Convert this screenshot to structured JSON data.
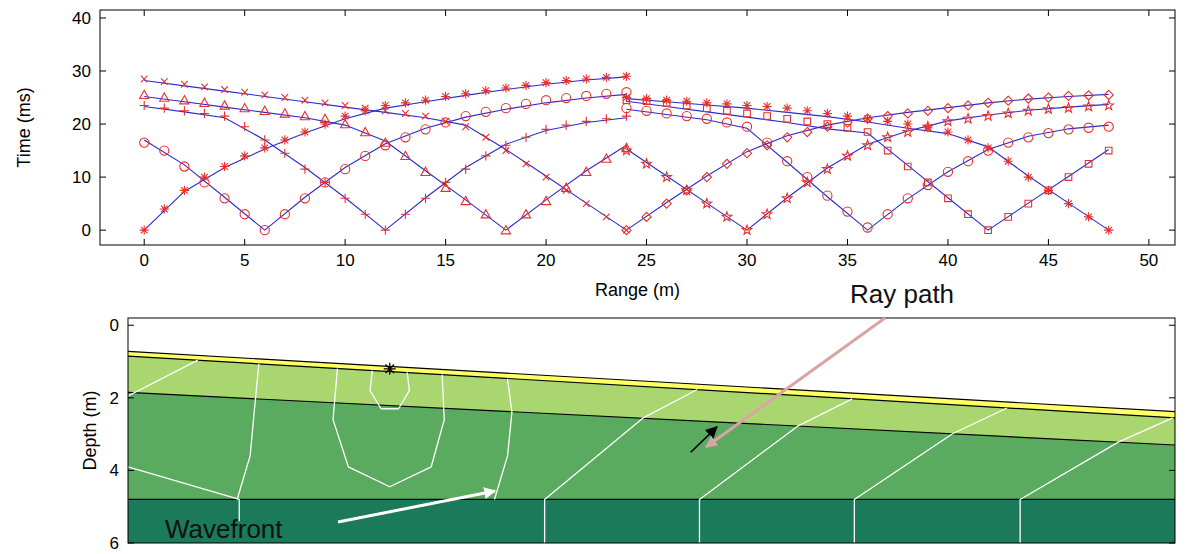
{
  "chart_data": [
    {
      "type": "scatter",
      "xlabel": "Range (m)",
      "ylabel": "Time (ms)",
      "xlim": [
        -2.2,
        51.3
      ],
      "xticks": [
        0,
        5,
        10,
        15,
        20,
        25,
        30,
        35,
        40,
        45,
        50
      ],
      "ylim": [
        -2.8,
        41.5
      ],
      "yticks": [
        0,
        10,
        20,
        30,
        40
      ],
      "grid": false,
      "series": [
        {
          "type": "scatter",
          "marker": "asterisk",
          "color": "#e8302a",
          "x": [
            0,
            1,
            2,
            3,
            4,
            5,
            6,
            7,
            8,
            9,
            10,
            11,
            12,
            13,
            14,
            15,
            16,
            17,
            18,
            19,
            20,
            21,
            22,
            23,
            24
          ],
          "values": [
            0,
            4,
            7.5,
            10,
            12,
            14,
            15.5,
            17,
            18.5,
            20,
            21.5,
            22.5,
            23.5,
            24,
            24.5,
            25.2,
            25.7,
            26.3,
            26.8,
            27.3,
            27.8,
            28.2,
            28.5,
            28.8,
            29
          ]
        },
        {
          "type": "scatter",
          "marker": "circle",
          "color": "#e8302a",
          "x": [
            0,
            1,
            2,
            3,
            4,
            5,
            6,
            7,
            8,
            9,
            10,
            11,
            12,
            13,
            14,
            15,
            16,
            17,
            18,
            19,
            20,
            21,
            22,
            23,
            24
          ],
          "values": [
            16.5,
            15,
            12,
            9,
            6,
            3,
            0,
            3,
            6,
            9,
            11.5,
            14,
            16,
            17.5,
            19,
            20.3,
            21.5,
            22.3,
            23,
            23.8,
            24.5,
            24.9,
            25.3,
            25.7,
            26
          ]
        },
        {
          "type": "scatter",
          "marker": "plus",
          "color": "#e8302a",
          "x": [
            0,
            1,
            2,
            3,
            4,
            5,
            6,
            7,
            8,
            9,
            10,
            11,
            12,
            13,
            14,
            15,
            16,
            17,
            18,
            19,
            20,
            21,
            22,
            23,
            24
          ],
          "values": [
            23.5,
            23,
            22.5,
            22,
            21.5,
            19.5,
            17,
            14.5,
            11.5,
            9,
            6,
            3,
            0,
            3,
            6,
            9,
            11.5,
            14,
            16,
            17.5,
            19,
            19.8,
            20.5,
            21,
            21.5
          ]
        },
        {
          "type": "scatter",
          "marker": "triangle",
          "color": "#e8302a",
          "x": [
            0,
            1,
            2,
            3,
            4,
            5,
            6,
            7,
            8,
            9,
            10,
            11,
            12,
            13,
            14,
            15,
            16,
            17,
            18,
            19,
            20,
            21,
            22,
            23,
            24
          ],
          "values": [
            25.5,
            25,
            24.5,
            24,
            23.5,
            23,
            22.5,
            22,
            21.5,
            21,
            20,
            18.5,
            16.5,
            14,
            11,
            8,
            5.5,
            3,
            0,
            3,
            5.5,
            8,
            11,
            13.5,
            15.5
          ]
        },
        {
          "type": "scatter",
          "marker": "x",
          "color": "#e8302a",
          "x": [
            0,
            1,
            2,
            3,
            4,
            5,
            6,
            7,
            8,
            9,
            10,
            11,
            12,
            13,
            14,
            15,
            16,
            17,
            18,
            19,
            20,
            21,
            22,
            23,
            24
          ],
          "values": [
            28.5,
            28,
            27.5,
            27,
            26.5,
            26,
            25.5,
            25,
            24.5,
            24,
            23.5,
            23,
            22.5,
            22,
            21.5,
            20.5,
            19.5,
            17.5,
            15,
            12.5,
            10,
            7.5,
            5,
            2.5,
            0
          ]
        },
        {
          "type": "scatter",
          "marker": "diamond",
          "color": "#e8302a",
          "x": [
            24,
            25,
            26,
            27,
            28,
            29,
            30,
            31,
            32,
            33,
            34,
            35,
            36,
            37,
            38,
            39,
            40,
            41,
            42,
            43,
            44,
            45,
            46,
            47,
            48
          ],
          "values": [
            0,
            2.5,
            5,
            7.5,
            10,
            12.5,
            14.5,
            16,
            17.5,
            18.5,
            19.5,
            20.3,
            21,
            21.5,
            22,
            22.5,
            23,
            23.5,
            24,
            24.4,
            24.8,
            25,
            25.3,
            25.4,
            25.5
          ]
        },
        {
          "type": "scatter",
          "marker": "star",
          "color": "#e8302a",
          "x": [
            24,
            25,
            26,
            27,
            28,
            29,
            30,
            31,
            32,
            33,
            34,
            35,
            36,
            37,
            38,
            39,
            40,
            41,
            42,
            43,
            44,
            45,
            46,
            47,
            48
          ],
          "values": [
            15,
            12.5,
            10,
            7.5,
            5,
            2.5,
            0,
            3,
            6,
            9,
            11.5,
            14,
            16,
            17.5,
            18.5,
            19.5,
            20.5,
            21,
            21.5,
            22,
            22.5,
            22.8,
            23,
            23.3,
            23.5
          ]
        },
        {
          "type": "scatter",
          "marker": "circle",
          "color": "#e8302a",
          "x": [
            24,
            25,
            26,
            27,
            28,
            29,
            30,
            31,
            32,
            33,
            34,
            35,
            36,
            37,
            38,
            39,
            40,
            41,
            42,
            43,
            44,
            45,
            46,
            47,
            48
          ],
          "values": [
            23,
            22.5,
            22,
            21.5,
            21,
            20.3,
            19.5,
            16.5,
            13,
            10,
            6.5,
            3.5,
            0.5,
            3,
            6,
            8.5,
            11,
            13,
            15,
            16.5,
            17.5,
            18.3,
            19,
            19.3,
            19.5
          ]
        },
        {
          "type": "scatter",
          "marker": "square",
          "color": "#e8302a",
          "x": [
            24,
            25,
            26,
            27,
            28,
            29,
            30,
            31,
            32,
            33,
            34,
            35,
            36,
            37,
            38,
            39,
            40,
            41,
            42,
            43,
            44,
            45,
            46,
            47,
            48
          ],
          "values": [
            24.5,
            24.3,
            24,
            23.5,
            23,
            22.5,
            22,
            21.5,
            21,
            20.5,
            20,
            19.3,
            18.5,
            15,
            12,
            9,
            6,
            3,
            0,
            2.5,
            5,
            7.5,
            10,
            12.5,
            15
          ]
        },
        {
          "type": "scatter",
          "marker": "asterisk",
          "color": "#e8302a",
          "x": [
            24,
            25,
            26,
            27,
            28,
            29,
            30,
            31,
            32,
            33,
            34,
            35,
            36,
            37,
            38,
            39,
            40,
            41,
            42,
            43,
            44,
            45,
            46,
            47,
            48
          ],
          "values": [
            25,
            24.8,
            24.5,
            24.3,
            24,
            23.8,
            23.5,
            23.3,
            23,
            22.5,
            22,
            21.5,
            21,
            20.5,
            20,
            19.3,
            18.5,
            17,
            15.5,
            13,
            10,
            7.5,
            5,
            2.5,
            0
          ]
        },
        {
          "type": "line",
          "line_style": "solid",
          "color": "#2b2bd0",
          "x": [
            0,
            2,
            4,
            6,
            8,
            10,
            12,
            14,
            16,
            18,
            20,
            22,
            24
          ],
          "values": [
            0,
            7.3,
            11.8,
            15.3,
            18.3,
            21,
            23,
            24.2,
            25.4,
            26.5,
            27.5,
            28.3,
            28.9
          ]
        },
        {
          "type": "line",
          "line_style": "solid",
          "color": "#2b2bd0",
          "x": [
            0,
            2,
            4,
            6,
            8,
            10,
            12,
            14,
            16,
            18,
            20,
            22,
            24
          ],
          "values": [
            17,
            12.3,
            6.2,
            0,
            6.2,
            11.8,
            16.3,
            19.2,
            21.3,
            22.8,
            24,
            24.9,
            25.6
          ]
        },
        {
          "type": "line",
          "line_style": "solid",
          "color": "#2b2bd0",
          "x": [
            0,
            2,
            4,
            6,
            8,
            10,
            12,
            14,
            16,
            18,
            20,
            22,
            24
          ],
          "values": [
            23.3,
            22.3,
            21.2,
            17,
            11.8,
            6.1,
            0,
            6.1,
            11.8,
            16.2,
            18.8,
            20.3,
            21.2
          ]
        },
        {
          "type": "line",
          "line_style": "solid",
          "color": "#2b2bd0",
          "x": [
            0,
            2,
            4,
            6,
            8,
            10,
            12,
            14,
            16,
            18,
            20,
            22,
            24
          ],
          "values": [
            25.2,
            24.2,
            23.2,
            22.2,
            21.2,
            19.8,
            16.8,
            11.2,
            5.7,
            0,
            5.7,
            11.2,
            16
          ]
        },
        {
          "type": "line",
          "line_style": "solid",
          "color": "#2b2bd0",
          "x": [
            0,
            2,
            4,
            6,
            8,
            10,
            12,
            14,
            16,
            18,
            20,
            22,
            24
          ],
          "values": [
            28.2,
            27.2,
            26.2,
            25.2,
            24.2,
            23.2,
            22.2,
            21.2,
            19.8,
            15.2,
            10.2,
            5.1,
            0
          ]
        },
        {
          "type": "line",
          "line_style": "solid",
          "color": "#2b2bd0",
          "x": [
            24,
            26,
            28,
            30,
            32,
            34,
            36,
            38,
            40,
            42,
            44,
            46,
            48
          ],
          "values": [
            0,
            5.2,
            10.2,
            14.8,
            17.8,
            19.8,
            21.2,
            22.2,
            23.1,
            24,
            24.7,
            25.2,
            25.6
          ]
        },
        {
          "type": "line",
          "line_style": "solid",
          "color": "#2b2bd0",
          "x": [
            24,
            26,
            28,
            30,
            32,
            34,
            36,
            38,
            40,
            42,
            44,
            46,
            48
          ],
          "values": [
            15.3,
            10.2,
            5.1,
            0,
            6.1,
            11.7,
            16.2,
            18.7,
            20.6,
            21.7,
            22.6,
            23.2,
            23.7
          ]
        },
        {
          "type": "line",
          "line_style": "solid",
          "color": "#2b2bd0",
          "x": [
            24,
            26,
            28,
            30,
            32,
            34,
            36,
            38,
            40,
            42,
            44,
            46,
            48
          ],
          "values": [
            22.8,
            21.8,
            20.8,
            19.2,
            12.8,
            6.3,
            0,
            5.9,
            11,
            15.2,
            17.7,
            19.1,
            19.8
          ]
        },
        {
          "type": "line",
          "line_style": "solid",
          "color": "#2b2bd0",
          "x": [
            24,
            26,
            28,
            30,
            32,
            34,
            36,
            38,
            40,
            42,
            44,
            46,
            48
          ],
          "values": [
            24.3,
            23.3,
            22.3,
            21.3,
            20.3,
            19.1,
            18.3,
            12.2,
            6.1,
            0,
            5.1,
            10.1,
            15.2
          ]
        },
        {
          "type": "line",
          "line_style": "solid",
          "color": "#2b2bd0",
          "x": [
            24,
            26,
            28,
            30,
            32,
            34,
            36,
            38,
            40,
            42,
            44,
            46,
            48
          ],
          "values": [
            24.8,
            24.2,
            23.6,
            23,
            22.2,
            21.4,
            20.4,
            19.2,
            18.2,
            15.7,
            10.2,
            5.1,
            0
          ]
        }
      ]
    },
    {
      "type": "section",
      "ylabel": "Depth (m)",
      "xlim": [
        0,
        48
      ],
      "ylim": [
        -0.2,
        6
      ],
      "yticks": [
        0,
        2,
        4,
        6
      ],
      "tick_labels": "y",
      "layers": [
        {
          "color": "#ffff66",
          "top": [
            0.72,
            2.38
          ]
        },
        {
          "color": "#a9d66f",
          "top": [
            0.85,
            2.55
          ]
        },
        {
          "color": "#5aab5f",
          "top": [
            1.85,
            3.3
          ]
        },
        {
          "color": "#1a7a5a",
          "top": [
            4.8,
            4.8
          ]
        }
      ],
      "wavefronts": [
        {
          "x": [
            11.2,
            11.1,
            11.6,
            12.4,
            12.9,
            12.8
          ],
          "depth": [
            1.25,
            1.8,
            2.3,
            2.3,
            1.8,
            1.3
          ]
        },
        {
          "x": [
            9.6,
            9.4,
            10.1,
            12,
            13.9,
            14.5,
            14.4
          ],
          "depth": [
            1.19,
            2.6,
            3.9,
            4.45,
            3.9,
            2.6,
            1.36
          ]
        },
        {
          "x": [
            6.0,
            5.8,
            5.6,
            5.0
          ],
          "depth": [
            1.06,
            2.3,
            3.6,
            4.8
          ]
        },
        {
          "x": [
            17.4,
            17.6,
            17.4,
            16.8
          ],
          "depth": [
            1.47,
            2.4,
            3.6,
            4.8
          ]
        },
        {
          "x": [
            5.1,
            5.1,
            0
          ],
          "depth": [
            5.4,
            4.8,
            3.9
          ]
        },
        {
          "x": [
            0,
            3.2
          ],
          "depth": [
            1.95,
            0.96
          ]
        },
        {
          "x": [
            19.1,
            19.1,
            23.6,
            26.1
          ],
          "depth": [
            6,
            4.8,
            2.56,
            1.77
          ]
        },
        {
          "x": [
            26.2,
            26.2,
            30.7,
            33.2
          ],
          "depth": [
            6,
            4.8,
            2.78,
            2.03
          ]
        },
        {
          "x": [
            33.3,
            33.3,
            37.8,
            40.3
          ],
          "depth": [
            6,
            4.8,
            2.99,
            2.28
          ]
        },
        {
          "x": [
            40.9,
            40.9,
            45.4,
            47.9
          ],
          "depth": [
            6,
            4.8,
            3.22,
            2.55
          ]
        }
      ],
      "ray_path": {
        "x": [
          25.8,
          27.0
        ],
        "depth": [
          3.5,
          2.8
        ]
      },
      "source": {
        "x": 12,
        "depth": 1.2,
        "marker": "asterisk"
      },
      "annotations": [
        {
          "text": "Ray path"
        },
        {
          "text": "Wavefront"
        }
      ]
    }
  ]
}
